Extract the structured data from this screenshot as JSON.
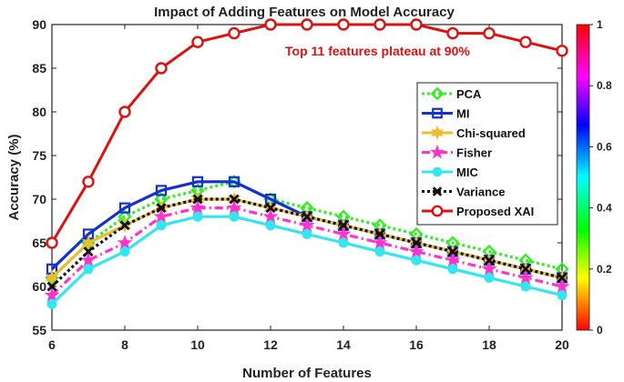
{
  "chart_data": {
    "type": "line",
    "title": "Impact of Adding Features on Model Accuracy",
    "xlabel": "Number of Features",
    "ylabel": "Accuracy (%)",
    "xlim": [
      6,
      20
    ],
    "ylim": [
      55,
      90
    ],
    "xticks": [
      6,
      8,
      10,
      12,
      14,
      16,
      18,
      20
    ],
    "yticks": [
      55,
      60,
      65,
      70,
      75,
      80,
      85,
      90
    ],
    "x": [
      6,
      7,
      8,
      9,
      10,
      11,
      12,
      13,
      14,
      15,
      16,
      17,
      18,
      19,
      20
    ],
    "series": [
      {
        "name": "PCA",
        "color": "#33ee22",
        "marker": "diamond",
        "dash": "dotted",
        "values": [
          61,
          65,
          68,
          70,
          71,
          72,
          70,
          69,
          68,
          67,
          66,
          65,
          64,
          63,
          62
        ]
      },
      {
        "name": "MI",
        "color": "#1530d0",
        "marker": "square",
        "dash": "solid",
        "values": [
          62,
          66,
          69,
          71,
          72,
          72,
          70,
          68,
          67,
          66,
          65,
          64,
          63,
          62,
          61
        ]
      },
      {
        "name": "Chi-squared",
        "color": "#eebb33",
        "marker": "star6",
        "dash": "solid",
        "values": [
          61,
          65,
          67,
          69,
          70,
          70,
          69,
          68,
          67,
          66,
          65,
          64,
          63,
          62,
          61
        ]
      },
      {
        "name": "Fisher",
        "color": "#ff33cc",
        "marker": "pentagram",
        "dash": "dashdot",
        "values": [
          59,
          63,
          65,
          68,
          69,
          69,
          68,
          67,
          66,
          65,
          64,
          63,
          62,
          61,
          60
        ]
      },
      {
        "name": "MIC",
        "color": "#33e6f0",
        "marker": "circle",
        "dash": "solid",
        "values": [
          58,
          62,
          64,
          67,
          68,
          68,
          67,
          66,
          65,
          64,
          63,
          62,
          61,
          60,
          59
        ]
      },
      {
        "name": "Variance",
        "color": "#111111",
        "marker": "x",
        "dash": "dotted",
        "values": [
          60,
          64,
          67,
          69,
          70,
          70,
          69,
          68,
          67,
          66,
          65,
          64,
          63,
          62,
          61
        ]
      },
      {
        "name": "Proposed XAI",
        "color": "#dd1111",
        "marker": "circle-open",
        "dash": "solid",
        "values": [
          65,
          72,
          80,
          85,
          88,
          89,
          90,
          90,
          90,
          90,
          90,
          89,
          89,
          88,
          87
        ]
      }
    ],
    "annotation": {
      "text": "Top 11 features plateau at 90%",
      "color": "#dd1111"
    },
    "legend_position": "right",
    "colorbar": {
      "ticks": [
        0,
        0.2,
        0.4,
        0.6,
        0.8,
        1
      ],
      "range": [
        0,
        1
      ]
    }
  }
}
